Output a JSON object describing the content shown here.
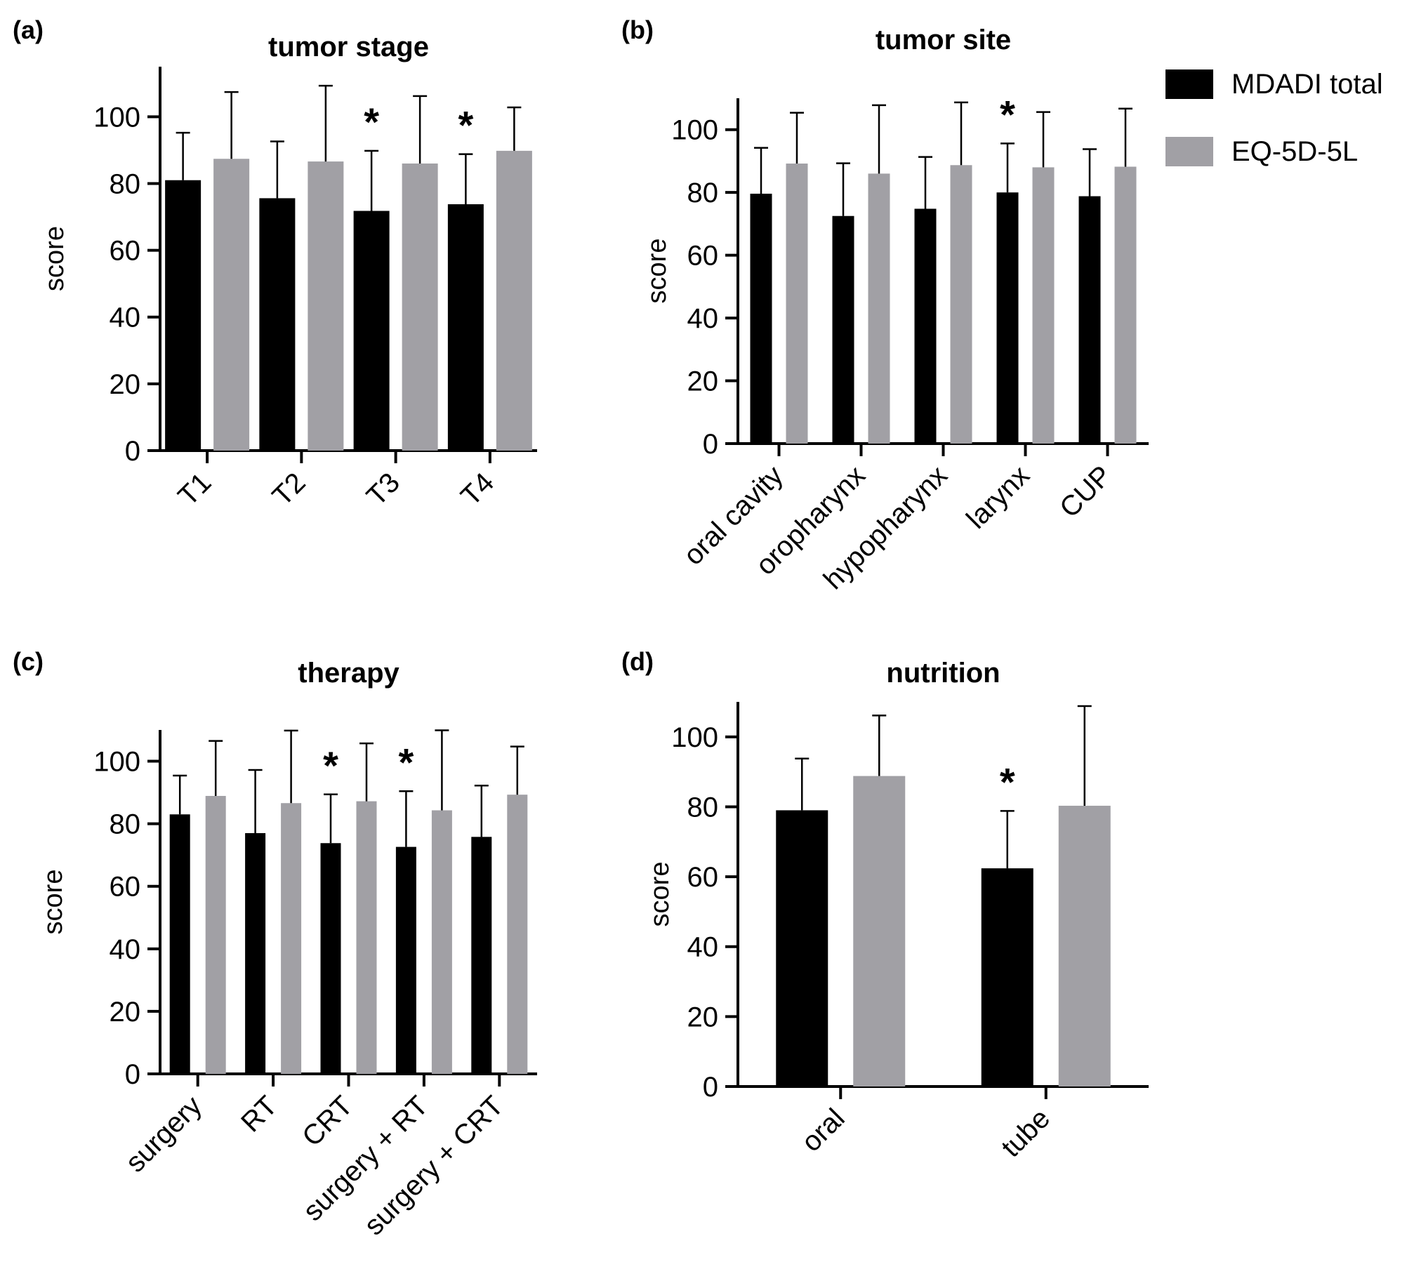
{
  "colors": {
    "mdadi": "#000000",
    "eq": "#a1a0a5",
    "axis": "#000000"
  },
  "legend": {
    "items": [
      "MDADI total",
      "EQ-5D-5L"
    ]
  },
  "chart_data": [
    {
      "panel": "(a)",
      "type": "bar",
      "title": "tumor stage",
      "ylabel": "score",
      "xlabel": "",
      "ylim": [
        0,
        115
      ],
      "yticks": [
        0,
        20,
        40,
        60,
        80,
        100
      ],
      "categories": [
        "T1",
        "T2",
        "T3",
        "T4"
      ],
      "rotate_labels": true,
      "series": [
        {
          "name": "MDADI total",
          "values": [
            81,
            75.6,
            71.8,
            73.8
          ],
          "errors": [
            14.2,
            17,
            18,
            15
          ]
        },
        {
          "name": "EQ-5D-5L",
          "values": [
            87.4,
            86.6,
            86,
            89.8
          ],
          "errors": [
            20,
            22.7,
            20.2,
            13
          ]
        }
      ],
      "significance": [
        "",
        "",
        "*",
        "*"
      ]
    },
    {
      "panel": "(b)",
      "type": "bar",
      "title": "tumor site",
      "ylabel": "score",
      "xlabel": "",
      "ylim": [
        0,
        110
      ],
      "yticks": [
        0,
        20,
        40,
        60,
        80,
        100
      ],
      "categories": [
        "oral cavity",
        "oropharynx",
        "hypopharynx",
        "larynx",
        "CUP"
      ],
      "rotate_labels": true,
      "series": [
        {
          "name": "MDADI total",
          "values": [
            79.6,
            72.5,
            74.8,
            80,
            78.8
          ],
          "errors": [
            14.6,
            16.8,
            16.5,
            15.6,
            15
          ]
        },
        {
          "name": "EQ-5D-5L",
          "values": [
            89.2,
            86,
            88.7,
            88,
            88.2
          ],
          "errors": [
            16.2,
            21.8,
            20,
            17.6,
            18.5
          ]
        }
      ],
      "significance": [
        "",
        "",
        "",
        "*",
        ""
      ]
    },
    {
      "panel": "(c)",
      "type": "bar",
      "title": "therapy",
      "ylabel": "score",
      "xlabel": "",
      "ylim": [
        0,
        110
      ],
      "yticks": [
        0,
        20,
        40,
        60,
        80,
        100
      ],
      "categories": [
        "surgery",
        "RT",
        "CRT",
        "surgery + RT",
        "surgery + CRT"
      ],
      "rotate_labels": true,
      "series": [
        {
          "name": "MDADI total",
          "values": [
            83,
            77,
            73.8,
            72.6,
            75.8
          ],
          "errors": [
            12.4,
            20.2,
            15.6,
            17.8,
            16.4
          ]
        },
        {
          "name": "EQ-5D-5L",
          "values": [
            88.9,
            86.6,
            87.2,
            84.3,
            89.3
          ],
          "errors": [
            17.6,
            23.2,
            18.5,
            25.6,
            15.4
          ]
        }
      ],
      "significance": [
        "",
        "",
        "*",
        "*",
        ""
      ]
    },
    {
      "panel": "(d)",
      "type": "bar",
      "title": "nutrition",
      "ylabel": "score",
      "xlabel": "",
      "ylim": [
        0,
        110
      ],
      "yticks": [
        0,
        20,
        40,
        60,
        80,
        100
      ],
      "categories": [
        "oral",
        "tube"
      ],
      "rotate_labels": true,
      "series": [
        {
          "name": "MDADI total",
          "values": [
            79,
            62.4
          ],
          "errors": [
            14.8,
            16.4
          ]
        },
        {
          "name": "EQ-5D-5L",
          "values": [
            88.8,
            80.3
          ],
          "errors": [
            17.3,
            28.5
          ]
        }
      ],
      "significance": [
        "",
        "*"
      ]
    }
  ]
}
